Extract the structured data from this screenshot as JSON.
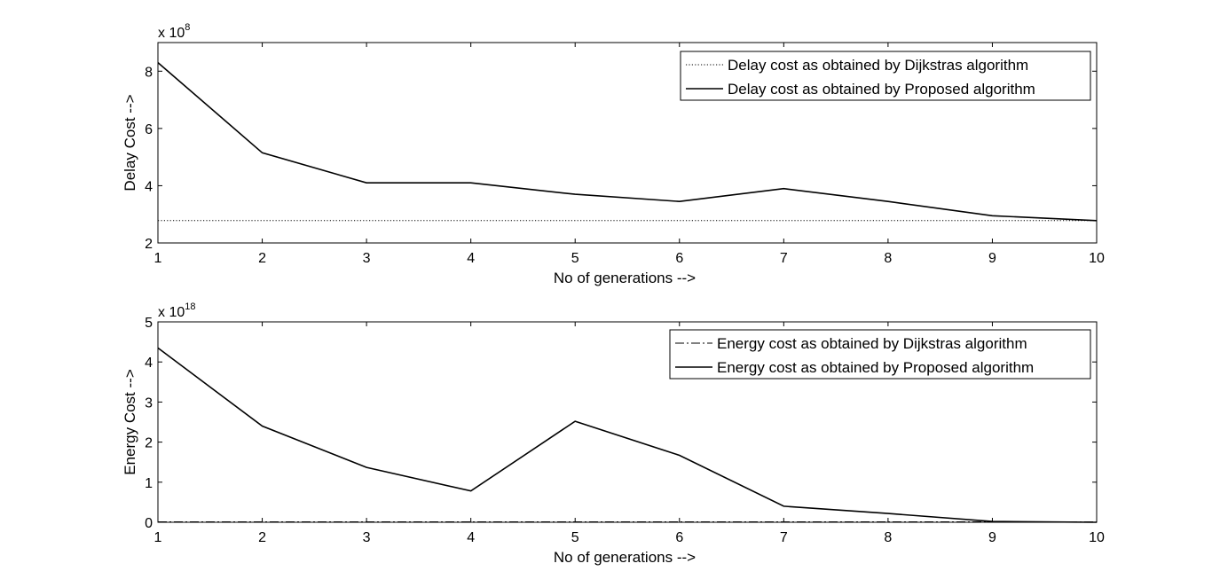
{
  "chart_data": [
    {
      "type": "line",
      "xlabel": "No of generations -->",
      "ylabel": "Delay Cost -->",
      "exponent_label": {
        "base": "x 10",
        "power": "8"
      },
      "x": [
        1,
        2,
        3,
        4,
        5,
        6,
        7,
        8,
        9,
        10
      ],
      "xlim": [
        1,
        10
      ],
      "ylim": [
        2,
        9
      ],
      "xticks": [
        "1",
        "2",
        "3",
        "4",
        "5",
        "6",
        "7",
        "8",
        "9",
        "10"
      ],
      "yticks": [
        2,
        4,
        6,
        8
      ],
      "yticklabels": [
        "2",
        "4",
        "6",
        "8"
      ],
      "grid": false,
      "legend_position": "top-right",
      "series": [
        {
          "name": "Delay cost as obtained by Dijkstras algorithm",
          "style": "dotted",
          "color": "#000000",
          "values": [
            2.78,
            2.78,
            2.78,
            2.78,
            2.78,
            2.78,
            2.78,
            2.78,
            2.78,
            2.78
          ]
        },
        {
          "name": "Delay cost as obtained by Proposed algorithm",
          "style": "solid",
          "color": "#000000",
          "values": [
            8.3,
            5.15,
            4.1,
            4.1,
            3.7,
            3.45,
            3.9,
            3.45,
            2.95,
            2.78
          ]
        }
      ]
    },
    {
      "type": "line",
      "xlabel": "No of generations -->",
      "ylabel": "Energy Cost -->",
      "exponent_label": {
        "base": "x 10",
        "power": "18"
      },
      "x": [
        1,
        2,
        3,
        4,
        5,
        6,
        7,
        8,
        9,
        10
      ],
      "xlim": [
        1,
        10
      ],
      "ylim": [
        0,
        5
      ],
      "xticks": [
        "1",
        "2",
        "3",
        "4",
        "5",
        "6",
        "7",
        "8",
        "9",
        "10"
      ],
      "yticks": [
        0,
        1,
        2,
        3,
        4,
        5
      ],
      "yticklabels": [
        "0",
        "1",
        "2",
        "3",
        "4",
        "5"
      ],
      "grid": false,
      "legend_position": "top-right",
      "series": [
        {
          "name": "Energy cost as obtained by Dijkstras algorithm",
          "style": "dashdot",
          "color": "#000000",
          "values": [
            0.01,
            0.01,
            0.01,
            0.01,
            0.01,
            0.01,
            0.01,
            0.01,
            0.01,
            0.01
          ]
        },
        {
          "name": "Energy cost as obtained by Proposed algorithm",
          "style": "solid",
          "color": "#000000",
          "values": [
            4.35,
            2.4,
            1.37,
            0.78,
            2.52,
            1.67,
            0.4,
            0.22,
            0.02,
            0.0
          ]
        }
      ]
    }
  ]
}
